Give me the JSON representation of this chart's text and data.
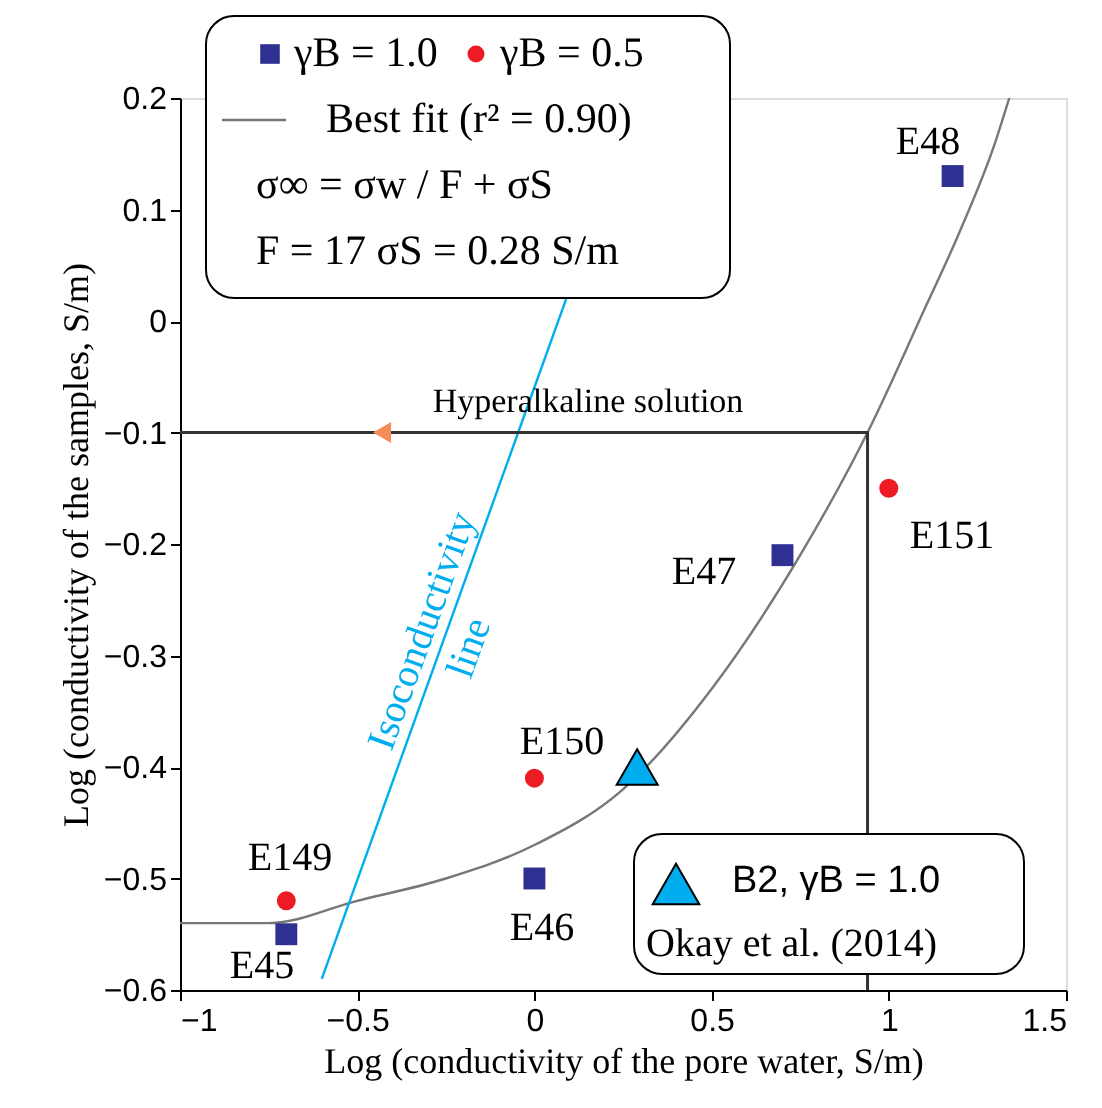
{
  "chart_data": {
    "type": "scatter",
    "xlabel": "Log (conductivity of the pore water, S/m)",
    "ylabel": "Log (conductivity of the samples, S/m)",
    "xlim": [
      -1,
      1.5
    ],
    "xticks": [
      -1,
      -0.5,
      0,
      0.5,
      1,
      1.5
    ],
    "ylim": [
      -0.6,
      0.2
    ],
    "yticks": [
      -0.6,
      -0.5,
      -0.4,
      -0.3,
      -0.2,
      -0.1,
      0,
      0.1,
      0.2
    ],
    "grid": false,
    "legend": "top left",
    "series": [
      {
        "name": "γB = 1.0",
        "marker": "square",
        "color": "#2e3192",
        "x": [
          1.18,
          0.7,
          0,
          -0.7
        ],
        "values": [
          0.13,
          -0.21,
          -0.5,
          -0.55
        ]
      },
      {
        "name": "γB = 0.5",
        "marker": "circle",
        "color": "#ed1c24",
        "x": [
          1.0,
          0,
          -0.7
        ],
        "values": [
          -0.15,
          -0.41,
          -0.52
        ]
      },
      {
        "name": "Best fit (r² = 0.90)",
        "type": "line",
        "color": "#777777",
        "x": [
          -1,
          -0.75,
          -0.5,
          -0.25,
          0,
          0.25,
          0.5,
          0.75,
          0.94,
          1.1,
          1.2,
          1.3,
          1.34
        ],
        "values": [
          -0.54,
          -0.54,
          -0.52,
          -0.5,
          -0.47,
          -0.42,
          -0.33,
          -0.21,
          -0.1,
          0.01,
          0.08,
          0.16,
          0.2
        ]
      },
      {
        "name": "Isoconductivity line",
        "type": "line",
        "color": "#00aeef",
        "x": [
          -0.6,
          0.09
        ],
        "values": [
          -0.59,
          0.02
        ]
      },
      {
        "name": "B2, γB = 1.0",
        "marker": "triangle",
        "color": "#00aeef",
        "x": [
          0.29
        ],
        "values": [
          -0.4
        ]
      },
      {
        "type": "line",
        "color": "#333333",
        "x": [
          -1,
          0.94,
          0.94
        ],
        "values": [
          -0.1,
          -0.1,
          -0.6
        ]
      },
      {
        "marker": "triangle",
        "color": "#f58d5b",
        "x": [
          -0.43
        ],
        "values": [
          -0.1
        ]
      }
    ],
    "annotations": [
      "σ∞ = σw / F + σS",
      "F = 17  σS = 0.28 S/m",
      "Okay et al. (2014)",
      "E48",
      "E47",
      "E151",
      "E150",
      "E149",
      "E45",
      "E46",
      "Hyperalkaline solution"
    ]
  }
}
